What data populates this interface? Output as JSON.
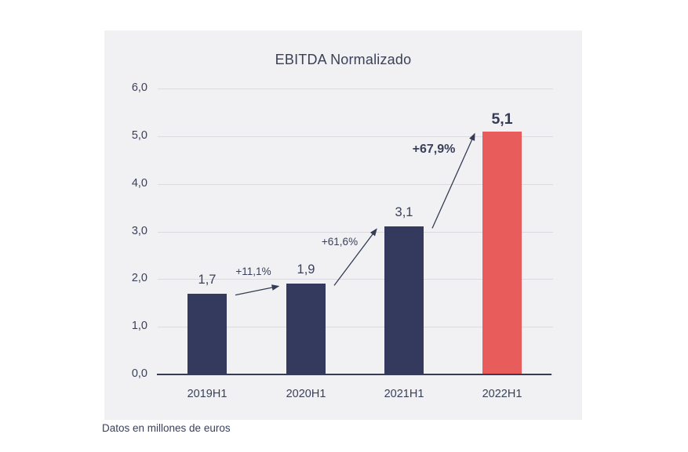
{
  "footer": {
    "note": "Datos en millones de euros"
  },
  "chart_data": {
    "type": "bar",
    "title": "EBITDA Normalizado",
    "categories": [
      "2019H1",
      "2020H1",
      "2021H1",
      "2022H1"
    ],
    "values": [
      1.7,
      1.9,
      3.1,
      5.1
    ],
    "value_labels": [
      "1,7",
      "1,9",
      "3,1",
      "5,1"
    ],
    "xlabel": "",
    "ylabel": "",
    "ylim": [
      0,
      6
    ],
    "y_tick_labels": [
      "0,0",
      "1,0",
      "2,0",
      "3,0",
      "4,0",
      "5,0",
      "6,0"
    ],
    "grid": true,
    "legend": "none",
    "decimal_separator": ",",
    "highlight_index": 3,
    "bar_color": "#333A5E",
    "highlight_color": "#E85C5C",
    "text_color": "#3A4059",
    "panel_color": "#F1F1F3",
    "gridline_color": "#DBDBDF",
    "annotations": [
      {
        "from_index": 0,
        "to_index": 1,
        "label": "+11,1%",
        "bold": false
      },
      {
        "from_index": 1,
        "to_index": 2,
        "label": "+61,6%",
        "bold": false
      },
      {
        "from_index": 2,
        "to_index": 3,
        "label": "+67,9%",
        "bold": true
      }
    ],
    "footnote": "Datos en millones de euros"
  }
}
